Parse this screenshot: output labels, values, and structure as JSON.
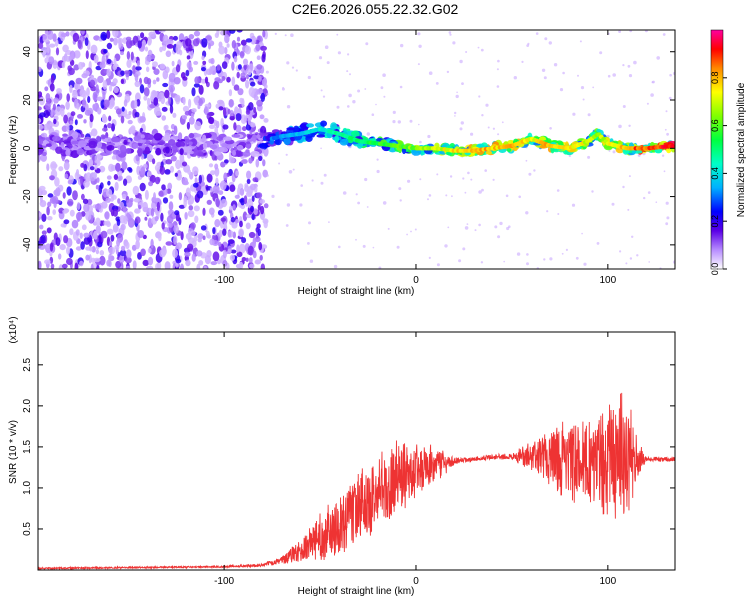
{
  "title": "C2E6.2026.055.22.32.G02",
  "chart_data": [
    {
      "type": "heatmap",
      "title": "C2E6.2026.055.22.32.G02",
      "xlabel": "Height of straight line (km)",
      "ylabel": "Frequency (Hz)",
      "xlim": [
        -197,
        135
      ],
      "ylim": [
        -50,
        49
      ],
      "x_ticks": [
        -100,
        0,
        100
      ],
      "x_tick_labels": [
        "-100",
        "0",
        "100"
      ],
      "y_ticks": [
        -40,
        -20,
        0,
        20,
        40
      ],
      "y_tick_labels": [
        "-40",
        "-20",
        "0",
        "20",
        "40"
      ],
      "colorbar": {
        "label": "Normalized spectral amplitude",
        "range": [
          0,
          1
        ],
        "ticks": [
          0.0,
          0.2,
          0.4,
          0.6,
          0.8
        ],
        "tick_labels": [
          "0.0",
          "0.2",
          "0.4",
          "0.6",
          "0.8"
        ]
      },
      "ridge": {
        "x": [
          -80,
          -70,
          -60,
          -50,
          -40,
          -30,
          -20,
          -10,
          0,
          10,
          20,
          30,
          40,
          50,
          60,
          70,
          80,
          90,
          95,
          100,
          110,
          120,
          135
        ],
        "freq": [
          3,
          5,
          6,
          8,
          6,
          3,
          2,
          1,
          0,
          0,
          -1,
          -1,
          0,
          1,
          4,
          1,
          0,
          3,
          6,
          2,
          0,
          0,
          1
        ],
        "amplitude": [
          0.3,
          0.35,
          0.4,
          0.45,
          0.5,
          0.55,
          0.6,
          0.65,
          0.7,
          0.75,
          0.8,
          0.85,
          0.85,
          0.85,
          0.8,
          0.85,
          0.85,
          0.75,
          0.7,
          0.8,
          0.9,
          0.95,
          1.0
        ]
      }
    },
    {
      "type": "line",
      "xlabel": "Height of straight line (km)",
      "ylabel": "SNR (10 * v/v)",
      "y_scale_label": "(x10⁴)",
      "xlim": [
        -197,
        135
      ],
      "ylim": [
        0,
        2.9
      ],
      "x_ticks": [
        -100,
        0,
        100
      ],
      "x_tick_labels": [
        "-100",
        "0",
        "100"
      ],
      "y_ticks": [
        0.5,
        1.0,
        1.5,
        2.0,
        2.5
      ],
      "y_tick_labels": [
        "0.5",
        "1.0",
        "1.5",
        "2.0",
        "2.5"
      ],
      "series": [
        {
          "name": "SNR",
          "color": "#ee3333",
          "x": [
            -197,
            -150,
            -100,
            -80,
            -70,
            -60,
            -50,
            -40,
            -30,
            -20,
            -10,
            0,
            10,
            20,
            30,
            40,
            50,
            60,
            70,
            80,
            90,
            100,
            110,
            115,
            120,
            135
          ],
          "center": [
            0.02,
            0.03,
            0.04,
            0.06,
            0.12,
            0.25,
            0.4,
            0.55,
            0.75,
            0.95,
            1.1,
            1.2,
            1.28,
            1.32,
            1.35,
            1.38,
            1.38,
            1.38,
            1.38,
            1.35,
            1.3,
            1.35,
            1.35,
            1.35,
            1.35,
            1.35
          ],
          "spread": [
            0.01,
            0.01,
            0.01,
            0.02,
            0.05,
            0.15,
            0.3,
            0.4,
            0.45,
            0.5,
            0.5,
            0.35,
            0.25,
            0.05,
            0.03,
            0.03,
            0.04,
            0.2,
            0.35,
            0.55,
            0.5,
            0.75,
            0.9,
            0.3,
            0.03,
            0.03
          ]
        }
      ]
    }
  ]
}
